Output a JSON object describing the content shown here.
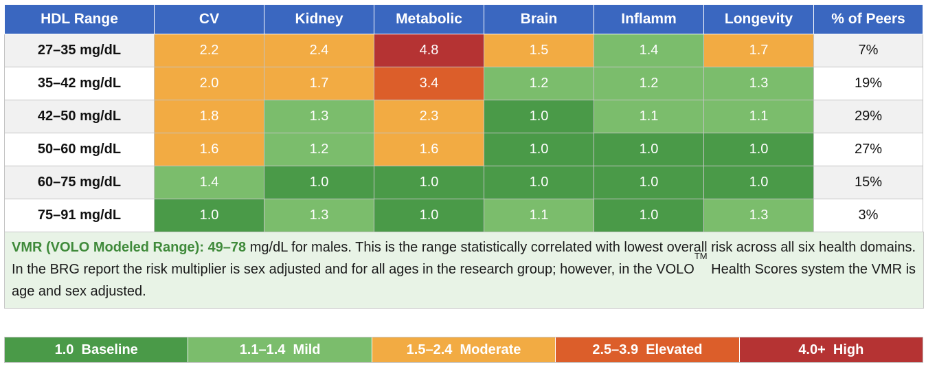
{
  "colors": {
    "baseline": "#4a9a48",
    "mild": "#7bbd6c",
    "moderate": "#f2ab43",
    "elevated": "#dc5e2a",
    "high": "#b53333",
    "header": "#3a67c0"
  },
  "chart_data": {
    "type": "table",
    "columns": [
      "HDL Range",
      "CV",
      "Kidney",
      "Metabolic",
      "Brain",
      "Inflamm",
      "Longevity",
      "% of Peers"
    ],
    "rows": [
      {
        "range": "27–35 mg/dL",
        "values": [
          "2.2",
          "2.4",
          "4.8",
          "1.5",
          "1.4",
          "1.7"
        ],
        "levels": [
          "moderate",
          "moderate",
          "high",
          "moderate",
          "mild",
          "moderate"
        ],
        "peers": "7%"
      },
      {
        "range": "35–42 mg/dL",
        "values": [
          "2.0",
          "1.7",
          "3.4",
          "1.2",
          "1.2",
          "1.3"
        ],
        "levels": [
          "moderate",
          "moderate",
          "elevated",
          "mild",
          "mild",
          "mild"
        ],
        "peers": "19%"
      },
      {
        "range": "42–50 mg/dL",
        "values": [
          "1.8",
          "1.3",
          "2.3",
          "1.0",
          "1.1",
          "1.1"
        ],
        "levels": [
          "moderate",
          "mild",
          "moderate",
          "baseline",
          "mild",
          "mild"
        ],
        "peers": "29%"
      },
      {
        "range": "50–60 mg/dL",
        "values": [
          "1.6",
          "1.2",
          "1.6",
          "1.0",
          "1.0",
          "1.0"
        ],
        "levels": [
          "moderate",
          "mild",
          "moderate",
          "baseline",
          "baseline",
          "baseline"
        ],
        "peers": "27%"
      },
      {
        "range": "60–75 mg/dL",
        "values": [
          "1.4",
          "1.0",
          "1.0",
          "1.0",
          "1.0",
          "1.0"
        ],
        "levels": [
          "mild",
          "baseline",
          "baseline",
          "baseline",
          "baseline",
          "baseline"
        ],
        "peers": "15%"
      },
      {
        "range": "75–91 mg/dL",
        "values": [
          "1.0",
          "1.3",
          "1.0",
          "1.1",
          "1.0",
          "1.3"
        ],
        "levels": [
          "baseline",
          "mild",
          "baseline",
          "mild",
          "baseline",
          "mild"
        ],
        "peers": "3%"
      }
    ]
  },
  "note": {
    "label": "VMR (VOLO Modeled Range):",
    "range": "49–78",
    "text1": " mg/dL for males. This is the range statistically correlated with lowest overall risk across all six health domains. In the BRG report the risk multiplier is sex adjusted and for all ages in the research group; however, in the VOLO",
    "tm": "TM",
    "text2": " Health Scores system the VMR is age and sex adjusted."
  },
  "legend": [
    {
      "label": "1.0  Baseline",
      "level": "baseline"
    },
    {
      "label": "1.1–1.4  Mild",
      "level": "mild"
    },
    {
      "label": "1.5–2.4  Moderate",
      "level": "moderate"
    },
    {
      "label": "2.5–3.9  Elevated",
      "level": "elevated"
    },
    {
      "label": "4.0+  High",
      "level": "high"
    }
  ]
}
